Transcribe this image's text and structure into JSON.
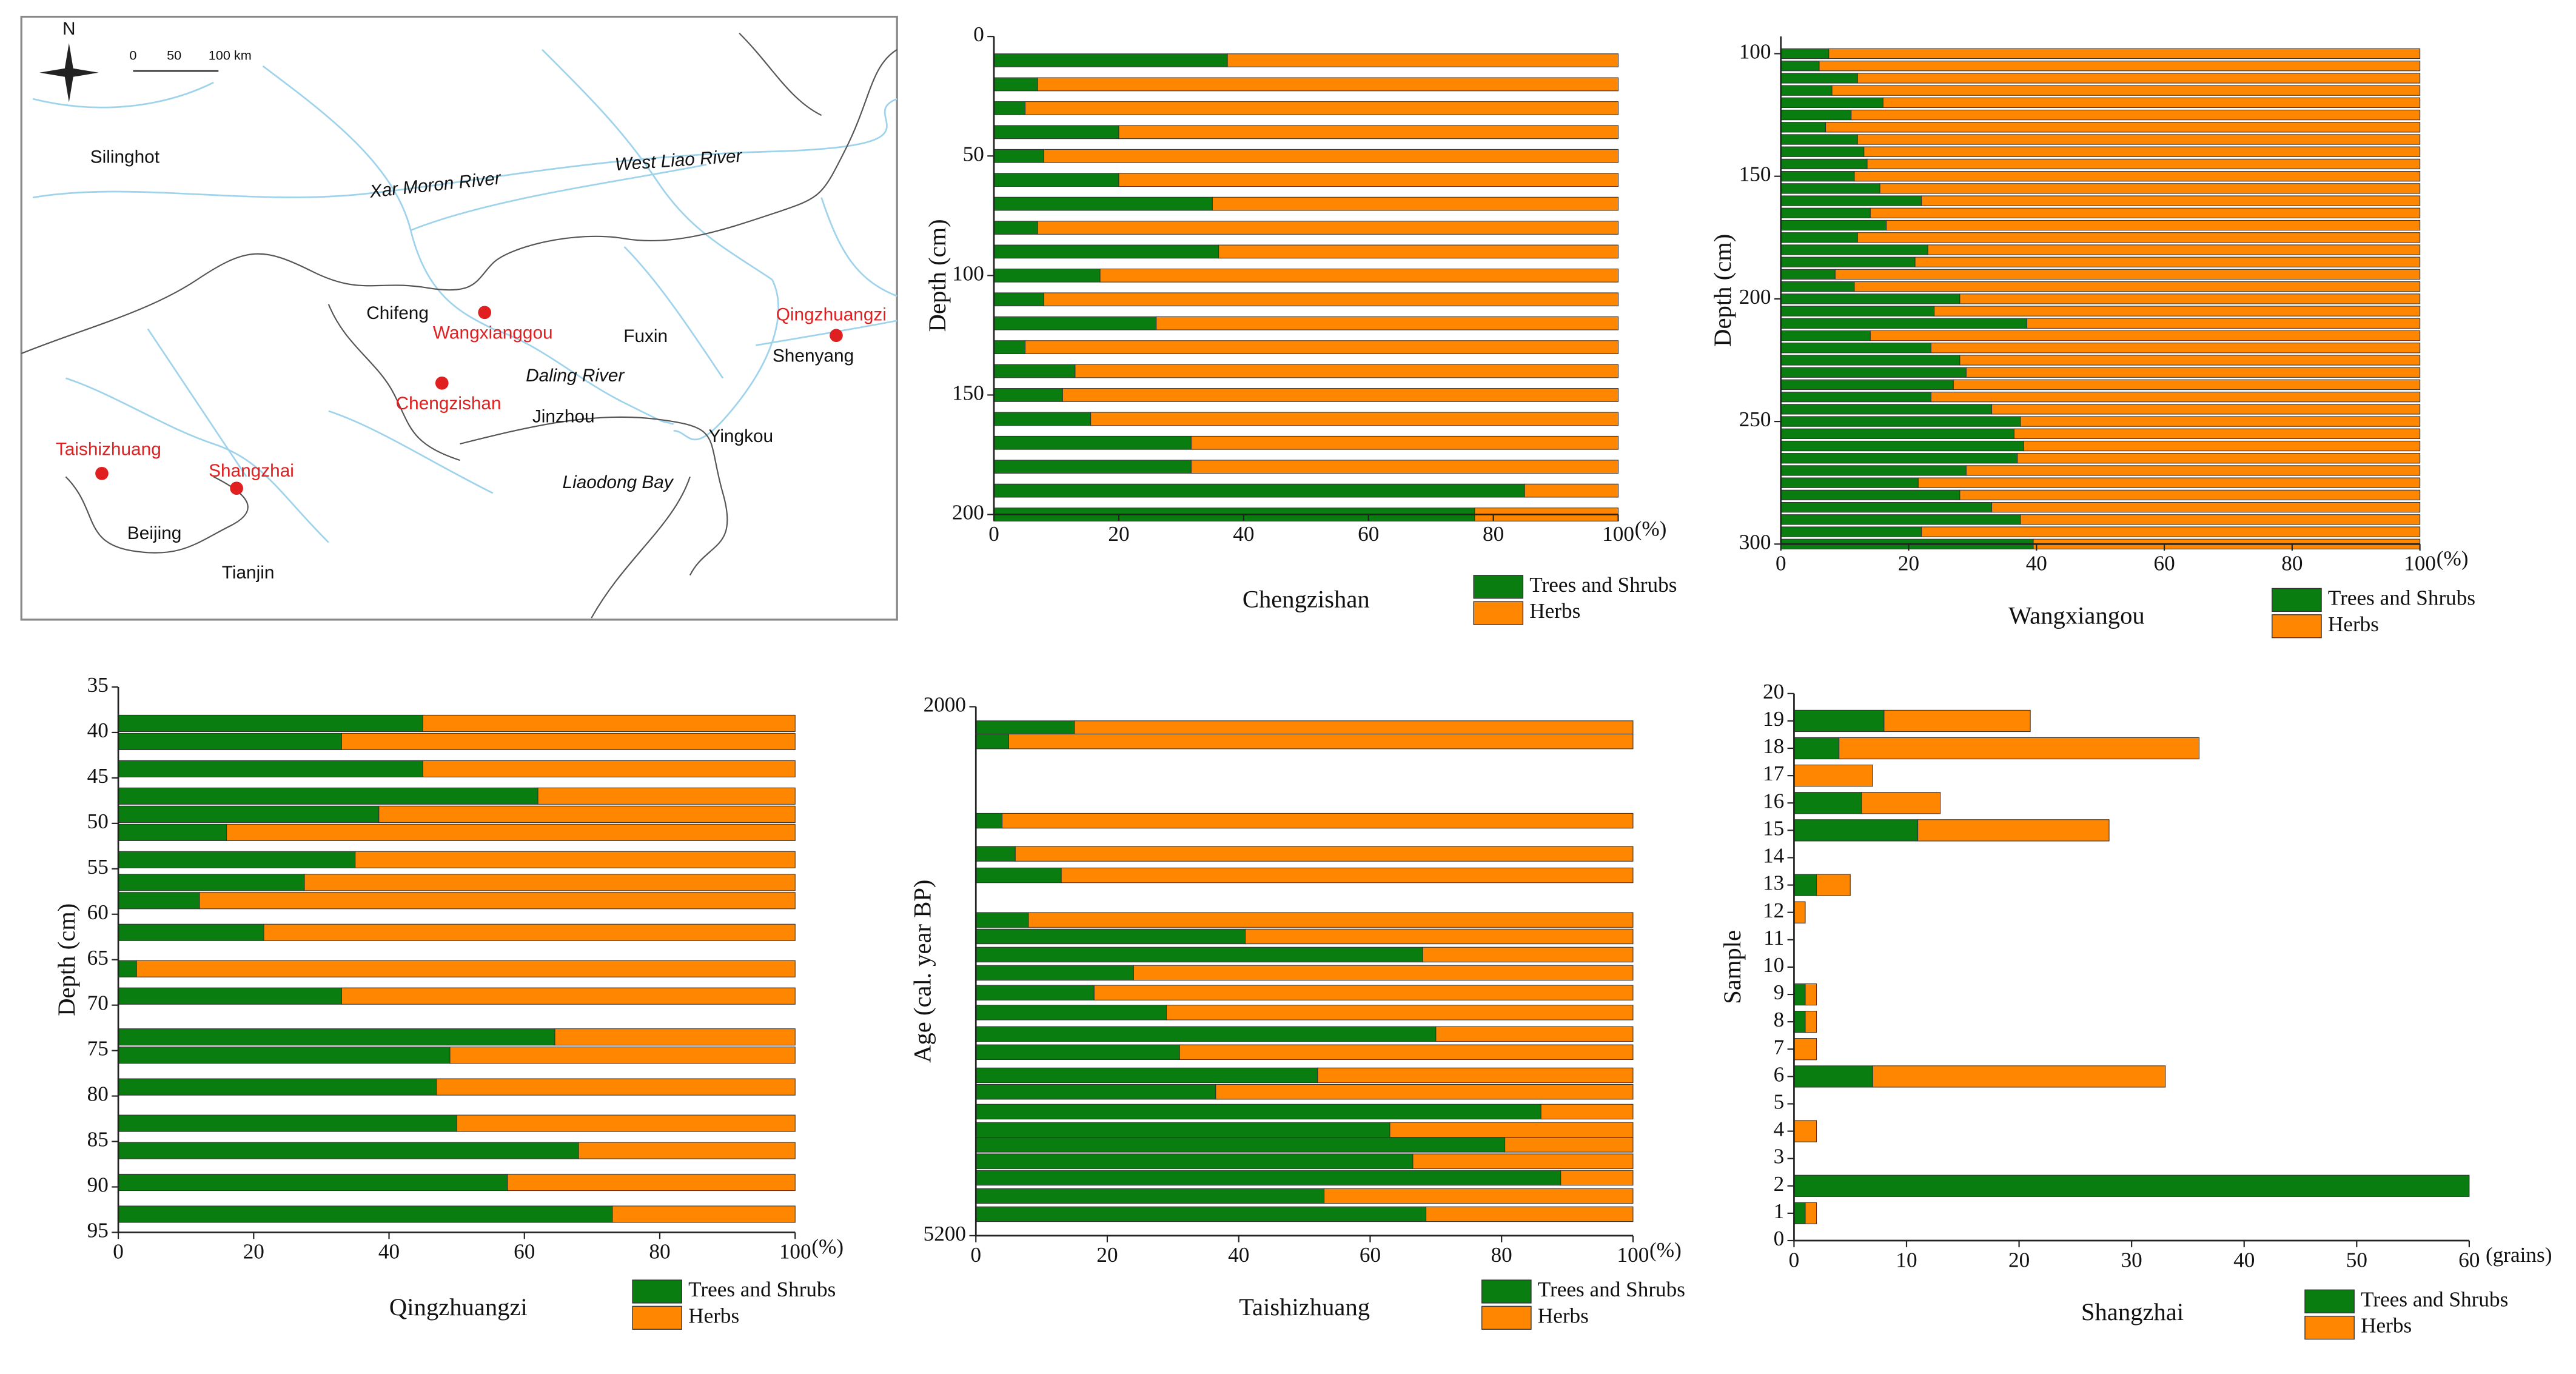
{
  "map": {
    "north": "N",
    "scale": [
      "0",
      "50",
      "100 km"
    ],
    "places": [
      "Silinghot",
      "Chifeng",
      "Fuxin",
      "Shenyang",
      "Jinzhou",
      "Yingkou",
      "Beijing",
      "Tianjin"
    ],
    "water": [
      "Xar Moron River",
      "West Liao River",
      "Daling River",
      "Liaodong Bay"
    ],
    "sites": [
      "Wangxianggou",
      "Chengzishan",
      "Qingzhuangzi",
      "Taishizhuang",
      "Shangzhai"
    ]
  },
  "chart_data": [
    {
      "type": "bar",
      "orientation": "horizontal",
      "stacked": true,
      "xlabel": "Chengzishan",
      "ylabel": "Depth (cm)",
      "x_unit": "(%)",
      "y": [
        10,
        20,
        30,
        40,
        50,
        60,
        70,
        80,
        90,
        100,
        110,
        120,
        130,
        140,
        150,
        160,
        170,
        180,
        190,
        200
      ],
      "series": [
        {
          "name": "Trees and Shrubs",
          "color": "#0a7d10",
          "values": [
            37.4,
            7,
            5,
            20,
            8,
            20,
            35,
            7,
            36,
            17,
            8,
            26,
            5,
            13,
            11,
            15.5,
            31.6,
            31.6,
            85,
            77
          ]
        },
        {
          "name": "Herbs",
          "color": "#ff8600",
          "values": [
            62.6,
            93,
            95,
            80,
            92,
            80,
            65,
            93,
            64,
            83,
            92,
            74,
            95,
            87,
            89,
            84.5,
            68.4,
            68.4,
            15,
            23
          ]
        }
      ],
      "xlim": [
        0,
        100
      ],
      "xticks": [
        0,
        20,
        40,
        60,
        80,
        100
      ],
      "ylim": [
        0,
        200
      ],
      "yticks": [
        0,
        50,
        100,
        150,
        200
      ],
      "y_inverted": true,
      "legend": "below right"
    },
    {
      "type": "bar",
      "orientation": "horizontal",
      "stacked": true,
      "xlabel": "Wangxiangou",
      "ylabel": "Depth (cm)",
      "x_unit": "(%)",
      "y": [
        100,
        105,
        110,
        115,
        120,
        125,
        130,
        135,
        140,
        145,
        150,
        155,
        160,
        165,
        170,
        175,
        180,
        185,
        190,
        195,
        200,
        205,
        210,
        215,
        220,
        225,
        230,
        235,
        240,
        245,
        250,
        255,
        260,
        265,
        270,
        275,
        280,
        285,
        290,
        295,
        300
      ],
      "series": [
        {
          "name": "Trees and Shrubs",
          "color": "#0a7d10",
          "values": [
            7.5,
            6,
            12,
            8,
            16,
            11,
            7,
            12,
            13,
            13.5,
            11.5,
            15.5,
            22,
            14,
            16.5,
            12,
            23,
            21,
            8.5,
            11.5,
            28,
            24,
            38.5,
            14,
            23.5,
            28,
            29,
            27,
            23.5,
            33,
            37.5,
            36.5,
            38,
            37,
            29,
            21.5,
            28,
            33,
            37.5,
            22,
            39.5
          ]
        },
        {
          "name": "Herbs",
          "color": "#ff8600",
          "values": [
            92.5,
            94,
            88,
            92,
            84,
            89,
            93,
            88,
            87,
            86.5,
            88.5,
            84.5,
            78,
            86,
            83.5,
            88,
            77,
            79,
            91.5,
            88.5,
            72,
            76,
            61.5,
            86,
            76.5,
            72,
            71,
            73,
            76.5,
            67,
            62.5,
            63.5,
            62,
            63,
            71,
            78.5,
            72,
            67,
            62.5,
            78,
            60.5
          ]
        }
      ],
      "xlim": [
        0,
        100
      ],
      "xticks": [
        0,
        20,
        40,
        60,
        80,
        100
      ],
      "ylim": [
        93,
        300
      ],
      "yticks": [
        100,
        150,
        200,
        250,
        300
      ],
      "y_inverted": true,
      "legend": "below right"
    },
    {
      "type": "bar",
      "orientation": "horizontal",
      "stacked": true,
      "xlabel": "Qingzhuangzi",
      "ylabel": "Depth (cm)",
      "x_unit": "(%)",
      "y": [
        39,
        41,
        44,
        47,
        49,
        51,
        54,
        56.5,
        58.5,
        62,
        66,
        69,
        73.5,
        75.5,
        79,
        83,
        86,
        89.5,
        93
      ],
      "series": [
        {
          "name": "Trees and Shrubs",
          "color": "#0a7d10",
          "values": [
            45,
            33,
            45,
            62,
            38.5,
            16,
            35,
            27.5,
            12,
            21.5,
            2.7,
            33,
            64.5,
            49,
            47,
            50,
            68,
            57.5,
            73
          ]
        },
        {
          "name": "Herbs",
          "color": "#ff8600",
          "values": [
            55,
            67,
            55,
            38,
            61.5,
            84,
            65,
            72.5,
            88,
            78.5,
            97.3,
            67,
            35.5,
            51,
            53,
            50,
            32,
            42.5,
            27
          ]
        }
      ],
      "xlim": [
        0,
        100
      ],
      "xticks": [
        0,
        20,
        40,
        60,
        80,
        100
      ],
      "ylim": [
        35,
        95
      ],
      "yticks": [
        35,
        40,
        45,
        50,
        55,
        60,
        65,
        70,
        75,
        80,
        85,
        90,
        95
      ],
      "y_inverted": true,
      "legend": "below right"
    },
    {
      "type": "bar",
      "orientation": "horizontal",
      "stacked": true,
      "xlabel": "Taishizhuang",
      "ylabel": "Age (cal. year BP)",
      "x_unit": "(%)",
      "y": [
        2130,
        2210,
        2690,
        2890,
        3020,
        3290,
        3390,
        3500,
        3610,
        3730,
        3850,
        3980,
        4090,
        4230,
        4330,
        4450,
        4560,
        4650,
        4750,
        4850,
        4960,
        5070
      ],
      "series": [
        {
          "name": "Trees and Shrubs",
          "color": "#0a7d10",
          "values": [
            15,
            5,
            4,
            6,
            13,
            8,
            41,
            68,
            24,
            18,
            29,
            70,
            31,
            52,
            36.5,
            86,
            63,
            80.5,
            66.5,
            89,
            53,
            68.5
          ]
        },
        {
          "name": "Herbs",
          "color": "#ff8600",
          "values": [
            85,
            95,
            96,
            94,
            87,
            92,
            59,
            32,
            76,
            82,
            71,
            30,
            69,
            48,
            63.5,
            14,
            37,
            19.5,
            33.5,
            11,
            47,
            31.5
          ]
        }
      ],
      "xlim": [
        0,
        100
      ],
      "xticks": [
        0,
        20,
        40,
        60,
        80,
        100
      ],
      "ylim": [
        2000,
        5200
      ],
      "yticks": [
        2000,
        5200
      ],
      "y_inverted": true,
      "legend": "below right"
    },
    {
      "type": "bar",
      "orientation": "horizontal",
      "stacked": true,
      "xlabel": "Shangzhai",
      "ylabel": "Sample",
      "x_unit": "(grains)",
      "y": [
        1,
        2,
        3,
        4,
        5,
        6,
        7,
        8,
        9,
        10,
        11,
        12,
        13,
        14,
        15,
        16,
        17,
        18,
        19,
        20
      ],
      "series": [
        {
          "name": "Trees and Shrubs",
          "color": "#0a7d10",
          "values": [
            1,
            60,
            0,
            0,
            0,
            7,
            0,
            1,
            1,
            0,
            0,
            0,
            2,
            0,
            11,
            6,
            0,
            4,
            8,
            0
          ]
        },
        {
          "name": "Herbs",
          "color": "#ff8600",
          "values": [
            1,
            0,
            0,
            2,
            0,
            26,
            2,
            1,
            1,
            0,
            0,
            1,
            3,
            0,
            17,
            7,
            7,
            32,
            13,
            0
          ]
        }
      ],
      "xlim": [
        0,
        60
      ],
      "xticks": [
        0,
        10,
        20,
        30,
        40,
        50,
        60
      ],
      "ylim": [
        0,
        20
      ],
      "yticks": [
        0,
        1,
        2,
        3,
        4,
        5,
        6,
        7,
        8,
        9,
        10,
        11,
        12,
        13,
        14,
        15,
        16,
        17,
        18,
        19,
        20
      ],
      "y_inverted": false,
      "legend": "below right"
    }
  ]
}
